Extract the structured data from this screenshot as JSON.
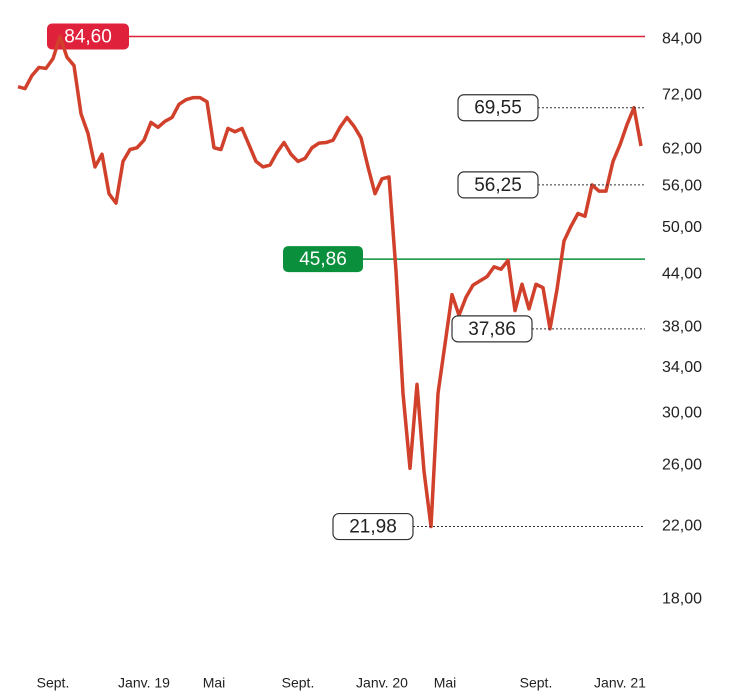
{
  "chart_data": {
    "type": "line",
    "log_scale": true,
    "categories": [
      null,
      null,
      null,
      null,
      null,
      "Sept.",
      null,
      null,
      null,
      null,
      null,
      null,
      null,
      null,
      null,
      null,
      null,
      null,
      "Janv. 19",
      null,
      null,
      null,
      null,
      null,
      null,
      null,
      null,
      null,
      "Mai",
      null,
      null,
      null,
      null,
      null,
      null,
      null,
      null,
      null,
      null,
      null,
      "Sept.",
      null,
      null,
      null,
      null,
      null,
      null,
      null,
      null,
      null,
      null,
      null,
      "Janv. 20",
      null,
      null,
      null,
      null,
      null,
      null,
      null,
      null,
      "Mai",
      null,
      null,
      null,
      null,
      null,
      null,
      null,
      null,
      null,
      null,
      null,
      null,
      "Sept.",
      null,
      null,
      null,
      null,
      null,
      null,
      null,
      null,
      null,
      null,
      null,
      "Janv. 21",
      null,
      null,
      null
    ],
    "series": [
      {
        "color": "#d0402b",
        "values": [
          73.7,
          73.3,
          76,
          77.7,
          77.5,
          79.6,
          84.6,
          79.9,
          78.1,
          68.4,
          64.8,
          59.1,
          61.2,
          54.9,
          53.5,
          60,
          62,
          62.3,
          63.6,
          66.8,
          65.9,
          67,
          67.7,
          70.2,
          71.1,
          71.5,
          71.5,
          70.7,
          62.3,
          62,
          65.7,
          65.1,
          65.7,
          62.8,
          60,
          59.1,
          59.4,
          61.5,
          63.2,
          61.2,
          60,
          60.5,
          62.3,
          63.1,
          63.2,
          63.6,
          65.9,
          67.7,
          66.1,
          64,
          59.1,
          54.9,
          57.2,
          57.5,
          44.4,
          31.7,
          25.8,
          32.5,
          25.6,
          21.98,
          31.7,
          36.3,
          41.6,
          39.3,
          41.3,
          42.7,
          43.2,
          43.7,
          44.9,
          44.6,
          45.7,
          39.8,
          42.8,
          40,
          42.8,
          42.4,
          37.86,
          42.2,
          48.2,
          50.2,
          52,
          51.6,
          56.25,
          55.3,
          55.3,
          60,
          62.8,
          66.4,
          69.55,
          62.6
        ]
      }
    ],
    "ylim": [
      16,
      90
    ],
    "yticks": [
      {
        "value": 84,
        "label": "84,00"
      },
      {
        "value": 72,
        "label": "72,00"
      },
      {
        "value": 62,
        "label": "62,00"
      },
      {
        "value": 56,
        "label": "56,00"
      },
      {
        "value": 50,
        "label": "50,00"
      },
      {
        "value": 44,
        "label": "44,00"
      },
      {
        "value": 38,
        "label": "38,00"
      },
      {
        "value": 34,
        "label": "34,00"
      },
      {
        "value": 30,
        "label": "30,00"
      },
      {
        "value": 26,
        "label": "26,00"
      },
      {
        "value": 22,
        "label": "22,00"
      },
      {
        "value": 18,
        "label": "18,00"
      }
    ],
    "reference_lines": [
      {
        "value": 84.6,
        "label": "84,60",
        "color": "#e0213c"
      },
      {
        "value": 45.86,
        "label": "45,86",
        "color": "#0a8f3c"
      }
    ],
    "annotations": [
      {
        "index": 88,
        "label": "69,55"
      },
      {
        "index": 82,
        "label": "56,25"
      },
      {
        "index": 76,
        "label": "37,86"
      },
      {
        "index": 59,
        "label": "21,98"
      }
    ]
  }
}
